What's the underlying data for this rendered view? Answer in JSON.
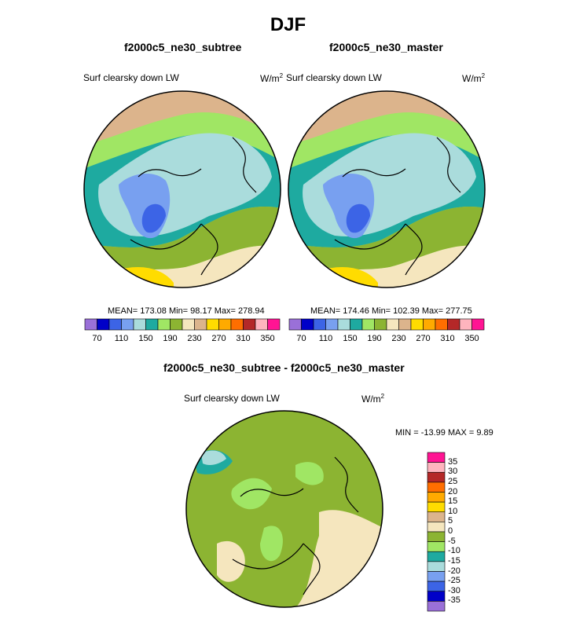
{
  "title": "DJF",
  "colors": {
    "main_cmap": [
      "#9a70d8",
      "#0000c8",
      "#3c64e6",
      "#78a0f0",
      "#aadcdc",
      "#1eaaa0",
      "#a0e664",
      "#8cb432",
      "#f5e6be",
      "#dcb48c",
      "#ffdc00",
      "#ffaa00",
      "#ff6e00",
      "#b42828",
      "#ffb4be",
      "#ff1493"
    ],
    "diff_cmap": [
      "#9a70d8",
      "#0000c8",
      "#3c64e6",
      "#78a0f0",
      "#aadcdc",
      "#1eaaa0",
      "#a0e664",
      "#8cb432",
      "#f5e6be",
      "#dcb48c",
      "#ffdc00",
      "#ffaa00",
      "#ff6e00",
      "#b42828",
      "#ffb4be",
      "#ff1493"
    ]
  },
  "chart_data": [
    {
      "type": "heatmap",
      "projection": "north-polar-stereographic",
      "title": "f2000c5_ne30_subtree",
      "variable": "Surf clearsky down LW",
      "units": "W/m",
      "units_power": "2",
      "stats": {
        "mean": "173.08",
        "min": "98.17",
        "max": "278.94"
      },
      "stats_text": "MEAN= 173.08  Min=  98.17  Max= 278.94",
      "colorbar": {
        "orientation": "horizontal",
        "levels": [
          70,
          90,
          110,
          130,
          150,
          170,
          190,
          210,
          230,
          250,
          270,
          290,
          310,
          330,
          350
        ],
        "tick_labels": [
          "70",
          "110",
          "150",
          "190",
          "230",
          "270",
          "310",
          "350"
        ]
      }
    },
    {
      "type": "heatmap",
      "projection": "north-polar-stereographic",
      "title": "f2000c5_ne30_master",
      "variable": "Surf clearsky down LW",
      "units": "W/m",
      "units_power": "2",
      "stats": {
        "mean": "174.46",
        "min": "102.39",
        "max": "277.75"
      },
      "stats_text": "MEAN= 174.46  Min= 102.39  Max= 277.75",
      "colorbar": {
        "orientation": "horizontal",
        "levels": [
          70,
          90,
          110,
          130,
          150,
          170,
          190,
          210,
          230,
          250,
          270,
          290,
          310,
          330,
          350
        ],
        "tick_labels": [
          "70",
          "110",
          "150",
          "190",
          "230",
          "270",
          "310",
          "350"
        ]
      }
    },
    {
      "type": "heatmap",
      "projection": "north-polar-stereographic",
      "title": "f2000c5_ne30_subtree - f2000c5_ne30_master",
      "variable": "Surf clearsky down LW",
      "units": "W/m",
      "units_power": "2",
      "stats": {
        "min": "-13.99",
        "max": "9.89"
      },
      "stats_text": "MIN = -13.99 MAX =   9.89",
      "colorbar": {
        "orientation": "vertical",
        "levels": [
          -35,
          -30,
          -25,
          -20,
          -15,
          -10,
          -5,
          0,
          5,
          10,
          15,
          20,
          25,
          30,
          35
        ],
        "tick_labels": [
          "35",
          "30",
          "25",
          "20",
          "15",
          "10",
          "5",
          "0",
          "-5",
          "-10",
          "-15",
          "-20",
          "-25",
          "-30",
          "-35"
        ]
      }
    }
  ]
}
